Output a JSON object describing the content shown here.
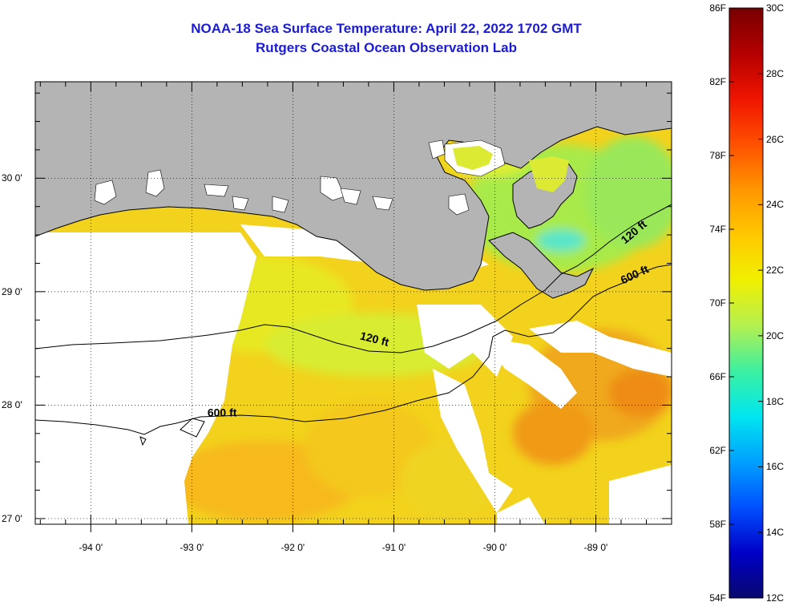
{
  "title": {
    "line1": "NOAA-18 Sea Surface Temperature:  April 22, 2022 1702 GMT",
    "line2": "Rutgers Coastal Ocean Observation Lab"
  },
  "map": {
    "lon_range": [
      -94.55,
      -88.25
    ],
    "lat_range": [
      26.95,
      30.85
    ],
    "lon_ticks": [
      {
        "value": -94,
        "label": "-94 0'"
      },
      {
        "value": -93,
        "label": "-93 0'"
      },
      {
        "value": -92,
        "label": "-92 0'"
      },
      {
        "value": -91,
        "label": "-91 0'"
      },
      {
        "value": -90,
        "label": "-90 0'"
      },
      {
        "value": -89,
        "label": "-89 0'"
      }
    ],
    "lat_ticks": [
      {
        "value": 30,
        "label": "30 0'"
      },
      {
        "value": 29,
        "label": "29 0'"
      },
      {
        "value": 28,
        "label": "28 0'"
      },
      {
        "value": 27,
        "label": "27 0'"
      }
    ],
    "grid": "dotted",
    "land_color": "#b4b4b4",
    "cloud_color": "#ffffff",
    "contour_labels": [
      {
        "text": "120 ft",
        "lon": -91.2,
        "lat": 28.55,
        "angle": 14
      },
      {
        "text": "600 ft",
        "lon": -92.7,
        "lat": 27.9,
        "angle": 0
      },
      {
        "text": "120 ft",
        "lon": -88.6,
        "lat": 29.5,
        "angle": -40
      },
      {
        "text": "600 ft",
        "lon": -88.6,
        "lat": 29.12,
        "angle": -25
      }
    ]
  },
  "colorbar": {
    "fahrenheit_labels": [
      "86F",
      "82F",
      "78F",
      "74F",
      "70F",
      "66F",
      "62F",
      "58F",
      "54F"
    ],
    "celsius_labels": [
      "30C",
      "28C",
      "26C",
      "24C",
      "22C",
      "20C",
      "18C",
      "16C",
      "14C",
      "12C"
    ],
    "range_celsius": [
      12,
      30
    ],
    "colors": [
      "#08086e",
      "#0000c8",
      "#0050ff",
      "#00a0ff",
      "#00e6f0",
      "#3cf0a0",
      "#b4f050",
      "#f0f000",
      "#ffc800",
      "#ff9600",
      "#ff5000",
      "#f01400",
      "#b40000",
      "#780000"
    ]
  }
}
